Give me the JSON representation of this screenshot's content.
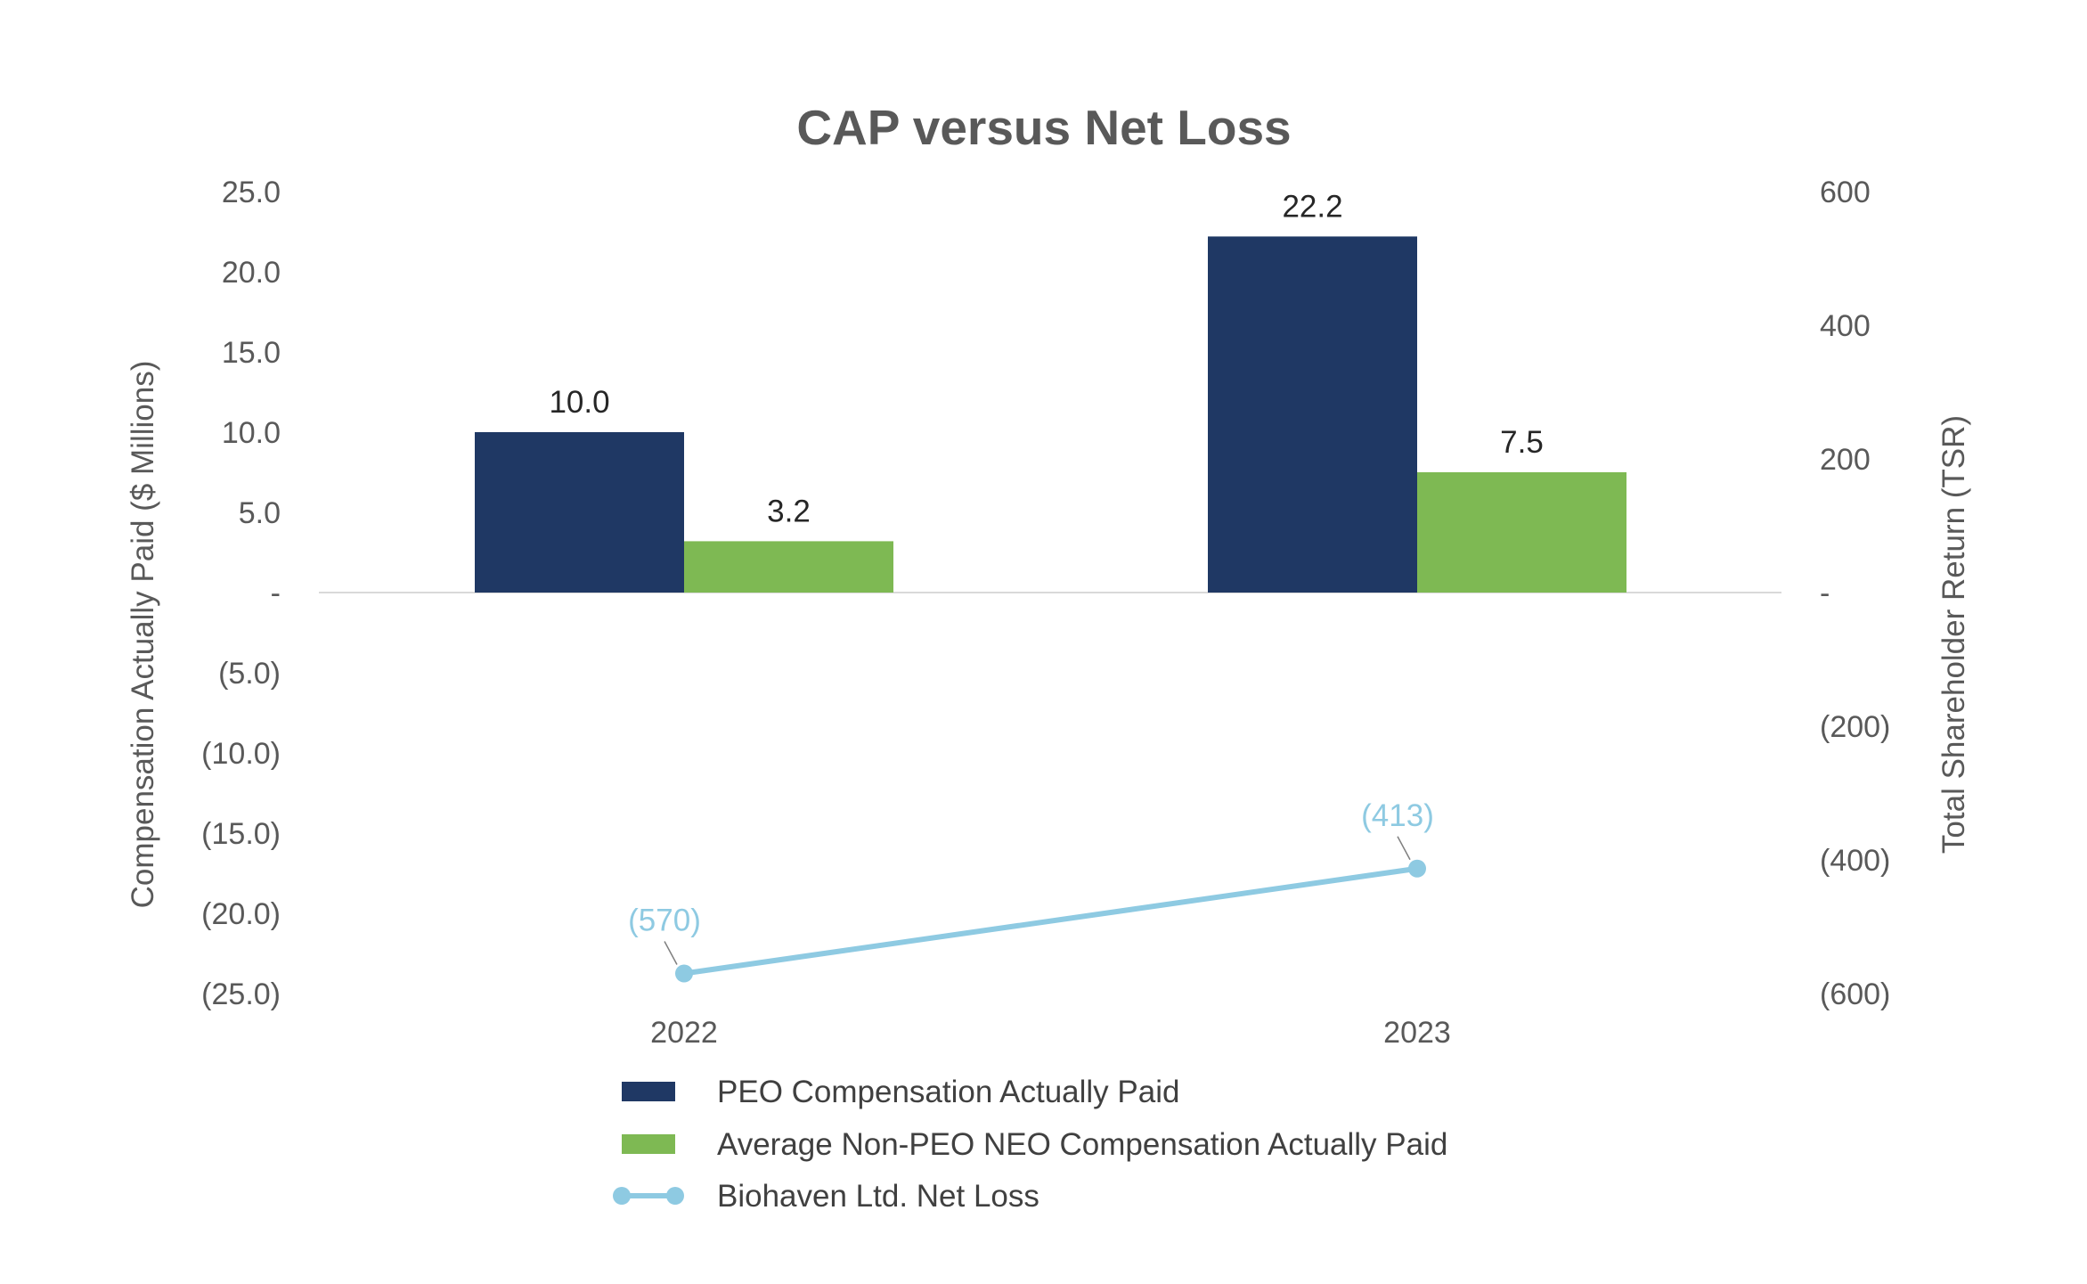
{
  "chart_data": {
    "type": "bar",
    "title": "CAP versus Net Loss",
    "categories": [
      "2022",
      "2023"
    ],
    "ylabel": "Compensation Actually Paid ($ Millions)",
    "y2label": "Total Shareholder Return (TSR)",
    "ylim": [
      -25,
      25
    ],
    "y2lim": [
      -600,
      600
    ],
    "yticks": [
      {
        "value": 25,
        "label": "25.0"
      },
      {
        "value": 20,
        "label": "20.0"
      },
      {
        "value": 15,
        "label": "15.0"
      },
      {
        "value": 10,
        "label": "10.0"
      },
      {
        "value": 5,
        "label": "5.0"
      },
      {
        "value": 0,
        "label": "-"
      },
      {
        "value": -5,
        "label": "(5.0)"
      },
      {
        "value": -10,
        "label": "(10.0)"
      },
      {
        "value": -15,
        "label": "(15.0)"
      },
      {
        "value": -20,
        "label": "(20.0)"
      },
      {
        "value": -25,
        "label": "(25.0)"
      }
    ],
    "y2ticks": [
      {
        "value": 600,
        "label": "600"
      },
      {
        "value": 400,
        "label": "400"
      },
      {
        "value": 200,
        "label": "200"
      },
      {
        "value": 0,
        "label": "-"
      },
      {
        "value": -200,
        "label": "(200)"
      },
      {
        "value": -400,
        "label": "(400)"
      },
      {
        "value": -600,
        "label": "(600)"
      }
    ],
    "series": [
      {
        "name": "PEO Compensation Actually Paid",
        "kind": "bar",
        "axis": "left",
        "color": "#1f3864",
        "values": [
          10.0,
          22.2
        ],
        "labels": [
          "10.0",
          "22.2"
        ]
      },
      {
        "name": "Average Non-PEO NEO Compensation Actually Paid",
        "kind": "bar",
        "axis": "left",
        "color": "#7eb953",
        "values": [
          3.2,
          7.5
        ],
        "labels": [
          "3.2",
          "7.5"
        ]
      },
      {
        "name": "Biohaven Ltd. Net Loss",
        "kind": "line",
        "axis": "right",
        "color": "#8ecae2",
        "values": [
          -570,
          -413
        ],
        "labels": [
          "(570)",
          "(413)"
        ]
      }
    ],
    "legend_position": "bottom",
    "grid": false
  }
}
